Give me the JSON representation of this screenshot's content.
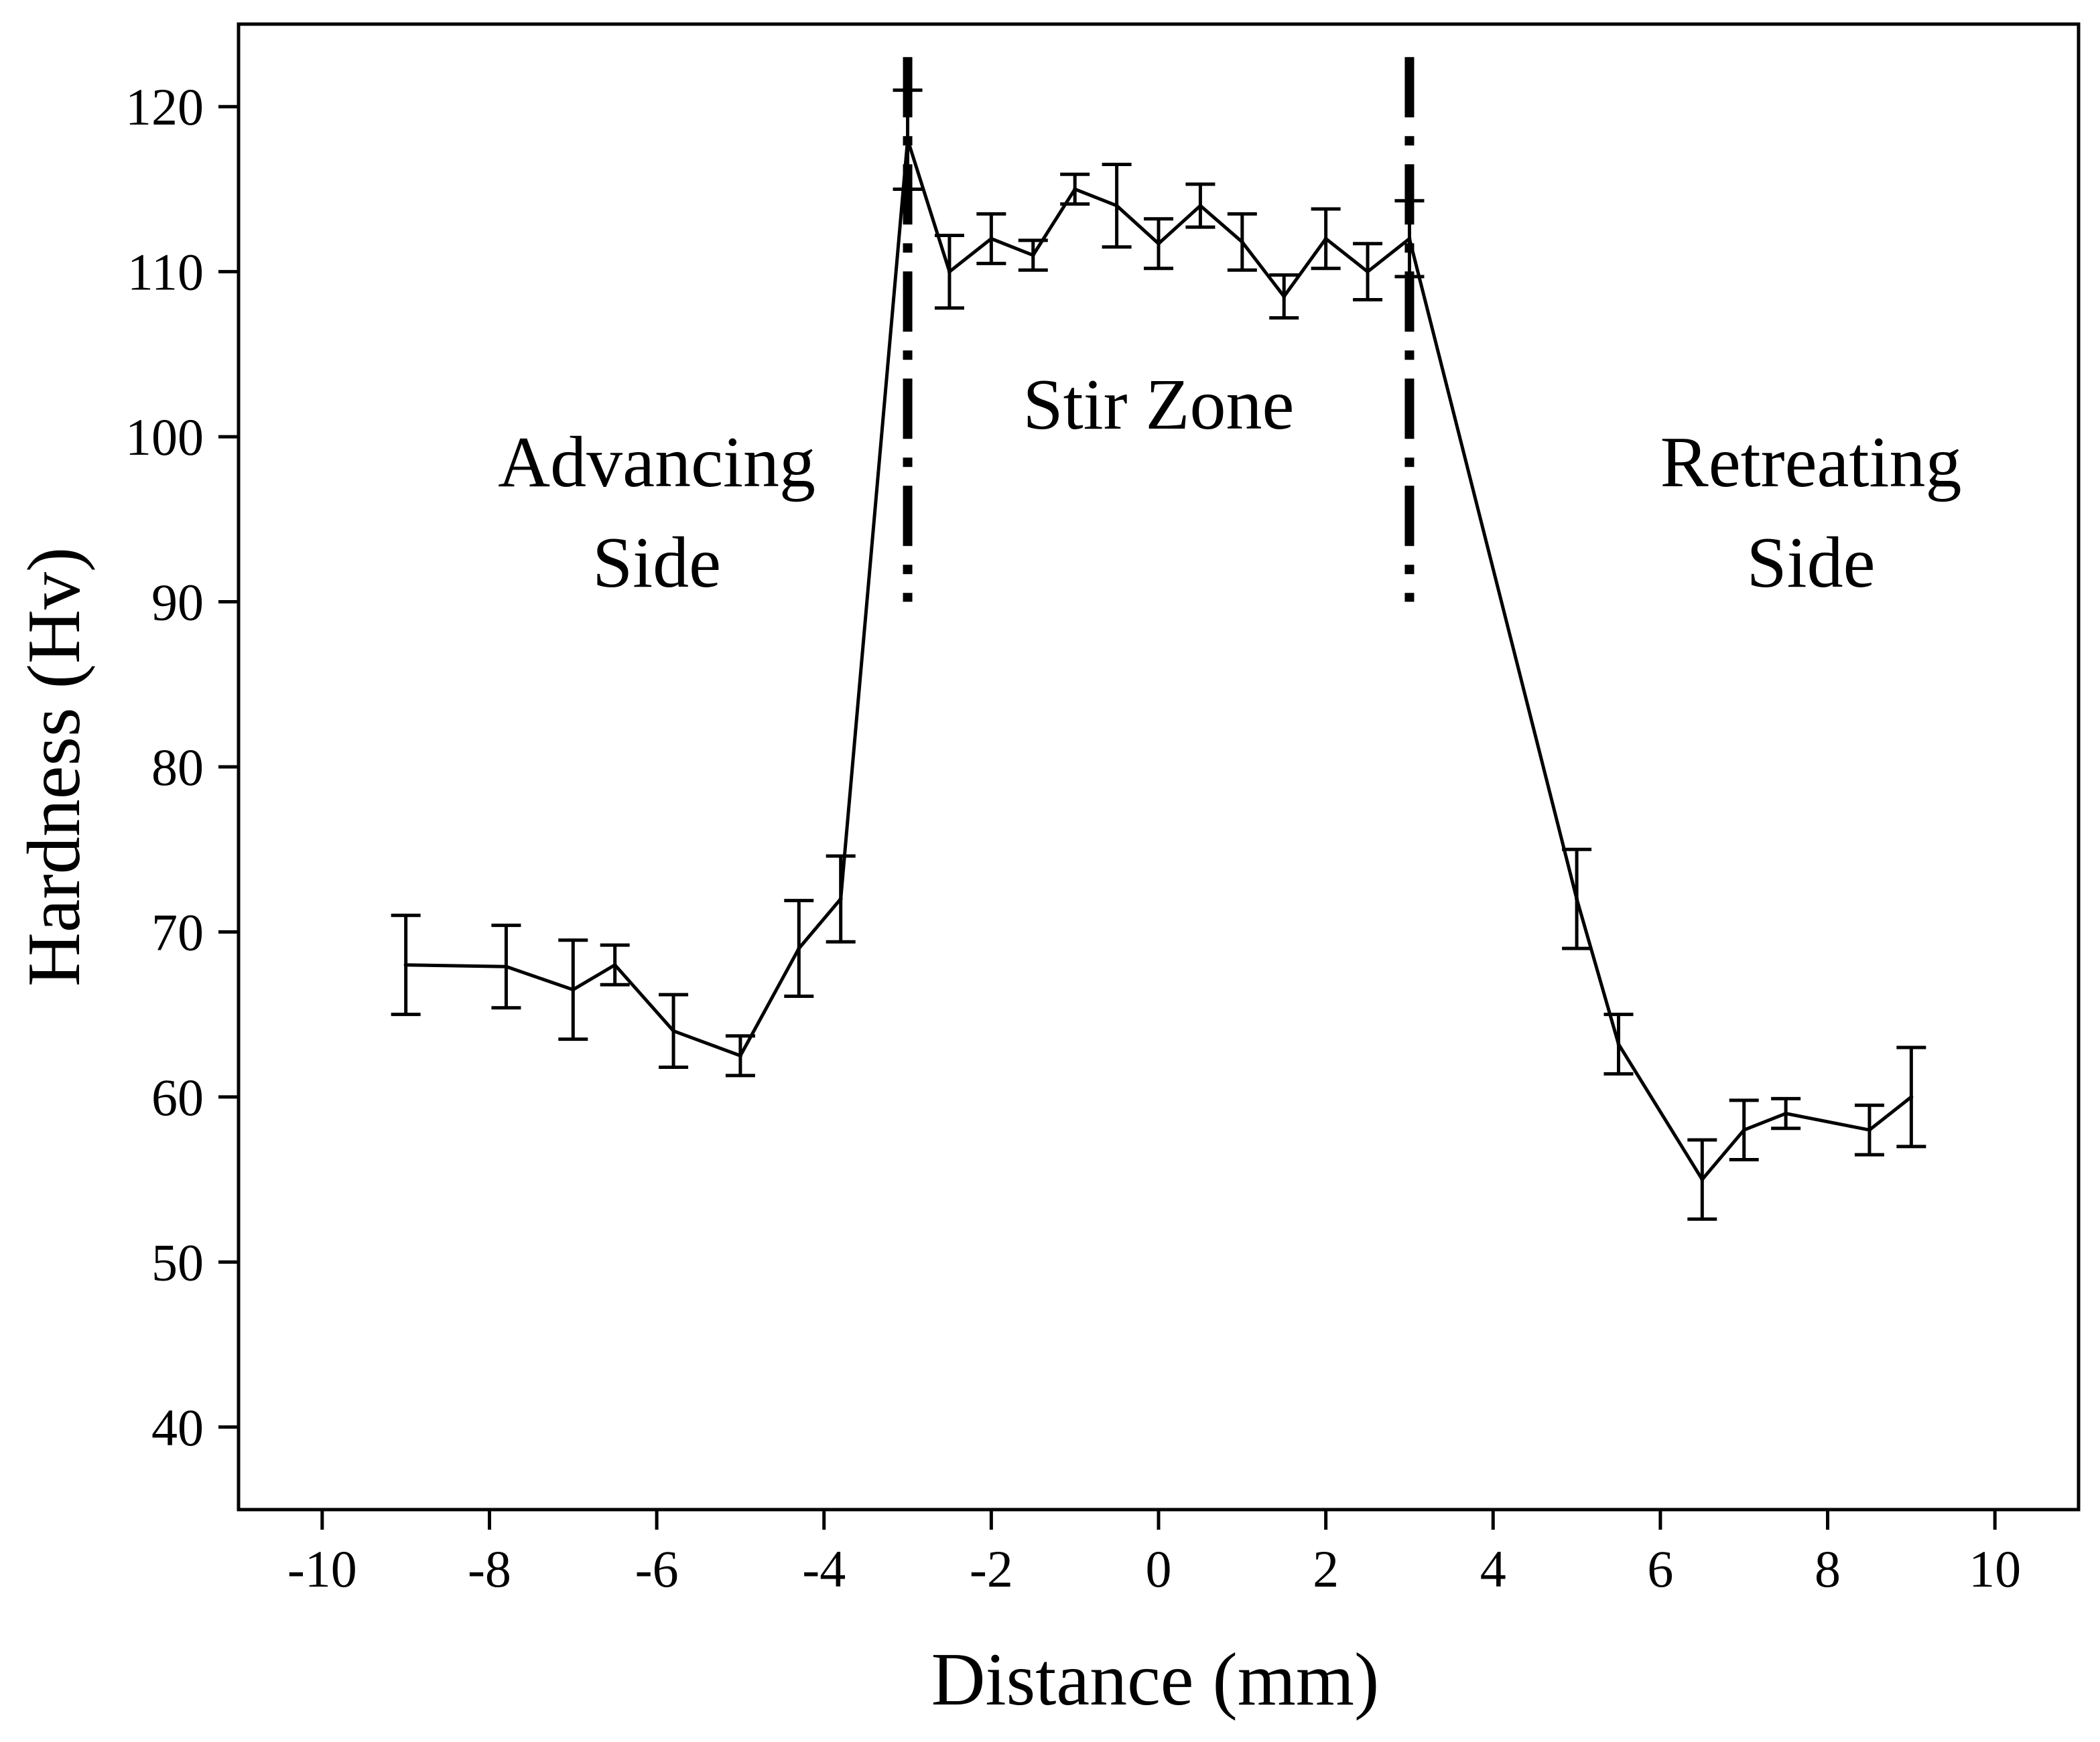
{
  "chart_data": {
    "type": "line",
    "title": "",
    "xlabel": "Distance (mm)",
    "ylabel": "Hardness (Hv)",
    "xlim": [
      -11,
      11
    ],
    "ylim": [
      35,
      125
    ],
    "x_ticks": [
      -10,
      -8,
      -6,
      -4,
      -2,
      0,
      2,
      4,
      6,
      8,
      10
    ],
    "y_ticks": [
      40,
      50,
      60,
      70,
      80,
      90,
      100,
      110,
      120
    ],
    "grid": false,
    "legend": "none",
    "line_color": "#000000",
    "series": [
      {
        "points": [
          {
            "x": -9.0,
            "y": 68.0,
            "err": 3.0
          },
          {
            "x": -7.8,
            "y": 67.9,
            "err": 2.5
          },
          {
            "x": -7.0,
            "y": 66.5,
            "err": 3.0
          },
          {
            "x": -6.5,
            "y": 68.0,
            "err": 1.2
          },
          {
            "x": -5.8,
            "y": 64.0,
            "err": 2.2
          },
          {
            "x": -5.0,
            "y": 62.5,
            "err": 1.2
          },
          {
            "x": -4.3,
            "y": 69.0,
            "err": 2.9
          },
          {
            "x": -3.8,
            "y": 72.0,
            "err": 2.6
          },
          {
            "x": -3.0,
            "y": 118.0,
            "err": 3.0
          },
          {
            "x": -2.5,
            "y": 110.0,
            "err": 2.2
          },
          {
            "x": -2.0,
            "y": 112.0,
            "err": 1.5
          },
          {
            "x": -1.5,
            "y": 111.0,
            "err": 0.9
          },
          {
            "x": -1.0,
            "y": 115.0,
            "err": 0.9
          },
          {
            "x": -0.5,
            "y": 114.0,
            "err": 2.5
          },
          {
            "x": 0.0,
            "y": 111.7,
            "err": 1.5
          },
          {
            "x": 0.5,
            "y": 114.0,
            "err": 1.3
          },
          {
            "x": 1.0,
            "y": 111.8,
            "err": 1.7
          },
          {
            "x": 1.5,
            "y": 108.5,
            "err": 1.3
          },
          {
            "x": 2.0,
            "y": 112.0,
            "err": 1.8
          },
          {
            "x": 2.5,
            "y": 110.0,
            "err": 1.7
          },
          {
            "x": 3.0,
            "y": 112.0,
            "err": 2.3
          },
          {
            "x": 5.0,
            "y": 72.0,
            "err": 3.0
          },
          {
            "x": 5.5,
            "y": 63.2,
            "err": 1.8
          },
          {
            "x": 6.5,
            "y": 55.0,
            "err": 2.4
          },
          {
            "x": 7.0,
            "y": 58.0,
            "err": 1.8
          },
          {
            "x": 7.5,
            "y": 59.0,
            "err": 0.9
          },
          {
            "x": 8.5,
            "y": 58.0,
            "err": 1.5
          },
          {
            "x": 9.0,
            "y": 60.0,
            "err": 3.0
          }
        ]
      }
    ],
    "boundaries": [
      {
        "x": -3.0,
        "y_range": [
          90,
          123
        ],
        "style": "dash-dot"
      },
      {
        "x": 3.0,
        "y_range": [
          90,
          123
        ],
        "style": "dash-dot"
      }
    ],
    "annotations": [
      {
        "lines": [
          "Advancing",
          "Side"
        ],
        "x": -6.0,
        "y": 97
      },
      {
        "lines": [
          "Stir Zone"
        ],
        "x": 0.0,
        "y": 100.5
      },
      {
        "lines": [
          "Retreating",
          "Side"
        ],
        "x": 7.8,
        "y": 97
      }
    ]
  }
}
